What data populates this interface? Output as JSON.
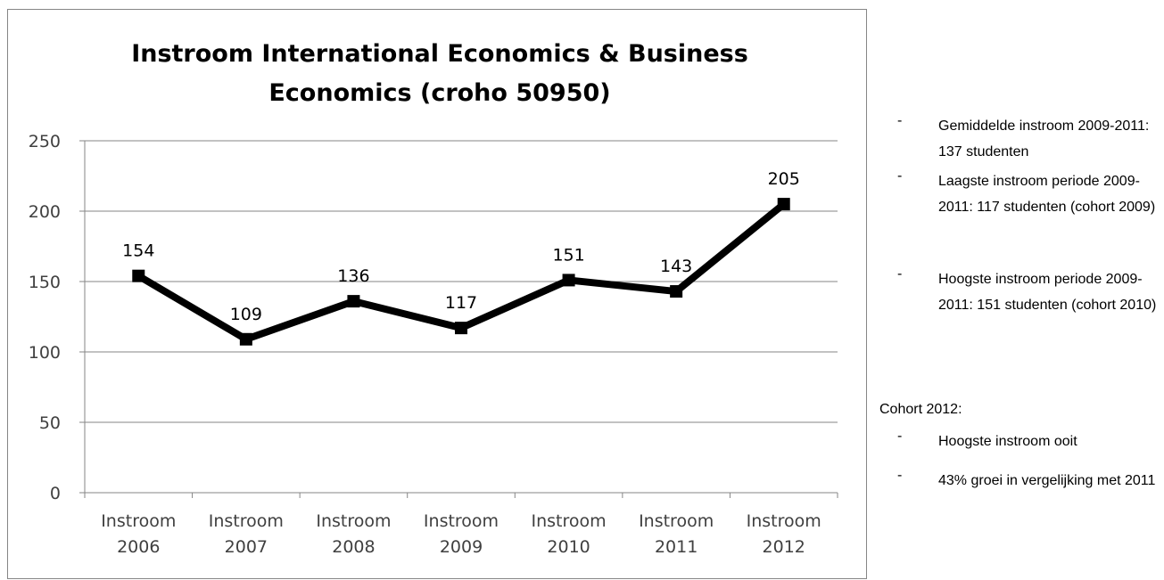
{
  "chart_data": {
    "type": "line",
    "title": [
      "Instroom International Economics & Business",
      "Economics (croho 50950)"
    ],
    "categories": [
      [
        "Instroom",
        "2006"
      ],
      [
        "Instroom",
        "2007"
      ],
      [
        "Instroom",
        "2008"
      ],
      [
        "Instroom",
        "2009"
      ],
      [
        "Instroom",
        "2010"
      ],
      [
        "Instroom",
        "2011"
      ],
      [
        "Instroom",
        "2012"
      ]
    ],
    "values": [
      154,
      109,
      136,
      117,
      151,
      143,
      205
    ],
    "data_labels": [
      "154",
      "109",
      "136",
      "117",
      "151",
      "143",
      "205"
    ],
    "ylim": [
      0,
      250
    ],
    "yticks": [
      "0",
      "50",
      "100",
      "150",
      "200",
      "250"
    ],
    "grid": true,
    "legend": "none",
    "line_color": "#000000",
    "marker": "square"
  },
  "notes": {
    "summary_items": [
      {
        "dash": "-",
        "text": "Gemiddelde instroom 2009-2011: 137 studenten"
      },
      {
        "dash": "-",
        "text": "Laagste instroom periode 2009-2011: 117 studenten (cohort 2009)"
      },
      {
        "dash": "-",
        "text": "Hoogste instroom periode 2009-2011: 151 studenten (cohort 2010)"
      }
    ],
    "cohort_heading": "Cohort 2012:",
    "cohort_items": [
      {
        "dash": "-",
        "text": "Hoogste instroom ooit"
      },
      {
        "dash": "-",
        "text": "43% groei in vergelijking met 2011"
      }
    ]
  }
}
